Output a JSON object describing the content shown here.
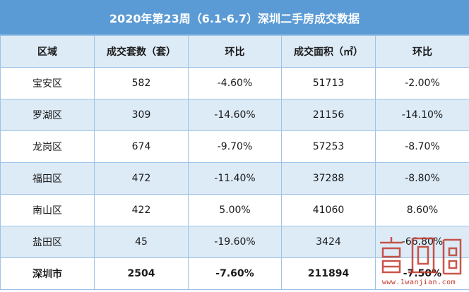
{
  "title": "2020年第23周（6.1-6.7）深圳二手房成交数据",
  "headers": [
    "区域",
    "成交套数（套）",
    "环比",
    "成交面积（㎡）",
    "环比"
  ],
  "rows": [
    [
      "宝安区",
      "582",
      "-4.60%",
      "51713",
      "-2.00%"
    ],
    [
      "罗湖区",
      "309",
      "-14.60%",
      "21156",
      "-14.10%"
    ],
    [
      "龙岗区",
      "674",
      "-9.70%",
      "57253",
      "-8.70%"
    ],
    [
      "福田区",
      "472",
      "-11.40%",
      "37288",
      "-8.80%"
    ],
    [
      "南山区",
      "422",
      "5.00%",
      "41060",
      "8.60%"
    ],
    [
      "盐田区",
      "45",
      "-19.60%",
      "3424",
      "-66.80%"
    ]
  ],
  "total": [
    "深圳市",
    "2504",
    "-7.60%",
    "211894",
    "-7.50%"
  ],
  "watermark": {
    "url": "www.1wanjian.com",
    "color": "#c0392b"
  }
}
